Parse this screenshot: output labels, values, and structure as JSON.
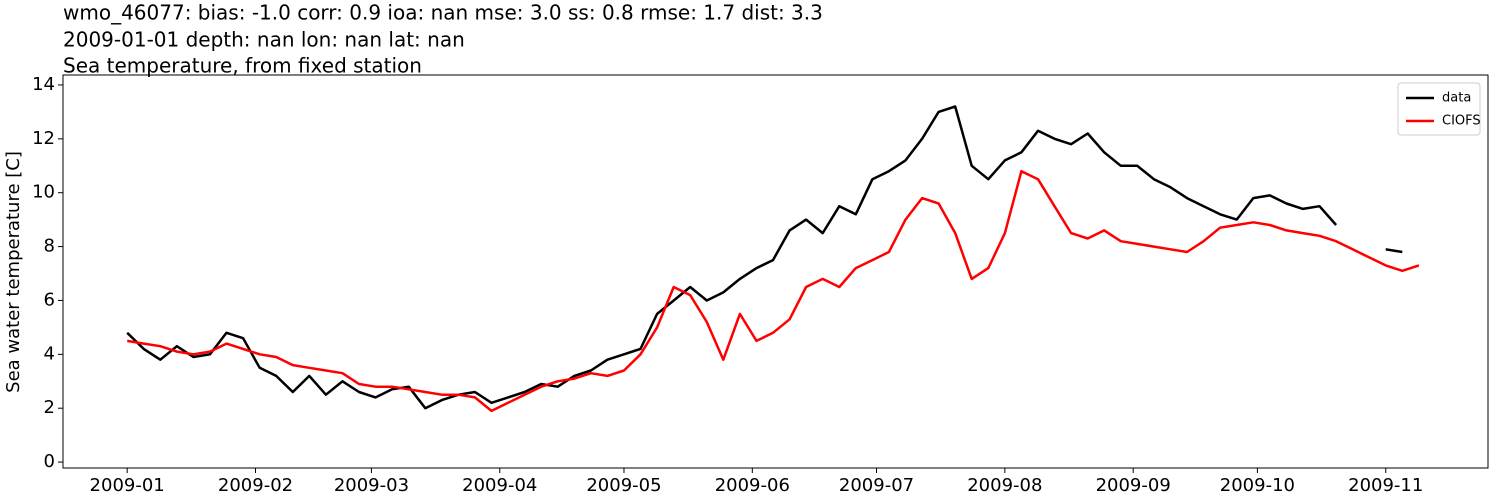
{
  "chart_data": {
    "type": "line",
    "title_lines": [
      "wmo_46077: bias: -1.0  corr: 0.9  ioa: nan  mse: 3.0  ss: 0.8  rmse: 1.7  dist: 3.3",
      "2009-01-01 depth: nan lon: nan lat: nan",
      "Sea temperature, from fixed station"
    ],
    "ylabel": "Sea water temperature [C]",
    "x": [
      0,
      4,
      8,
      12,
      16,
      20,
      24,
      28,
      32,
      36,
      40,
      44,
      48,
      52,
      56,
      60,
      64,
      68,
      72,
      76,
      80,
      84,
      88,
      92,
      96,
      100,
      104,
      108,
      112,
      116,
      120,
      124,
      128,
      132,
      136,
      140,
      144,
      148,
      152,
      156,
      160,
      164,
      168,
      172,
      176,
      180,
      184,
      188,
      192,
      196,
      200,
      204,
      208,
      212,
      216,
      220,
      224,
      228,
      232,
      236,
      240,
      244,
      248,
      252,
      256,
      260,
      264,
      268,
      272,
      276,
      280,
      284,
      288,
      292,
      296,
      300,
      304,
      308,
      312
    ],
    "series": [
      {
        "name": "data",
        "color": "#000000",
        "values": [
          4.8,
          4.2,
          3.8,
          4.3,
          3.9,
          4.0,
          4.8,
          4.6,
          3.5,
          3.2,
          2.6,
          3.2,
          2.5,
          3.0,
          2.6,
          2.4,
          2.7,
          2.8,
          2.0,
          2.3,
          2.5,
          2.6,
          2.2,
          2.4,
          2.6,
          2.9,
          2.8,
          3.2,
          3.4,
          3.8,
          4.0,
          4.2,
          5.5,
          6.0,
          6.5,
          6.0,
          6.3,
          6.8,
          7.2,
          7.5,
          8.6,
          9.0,
          8.5,
          9.5,
          9.2,
          10.5,
          10.8,
          11.2,
          12.0,
          13.0,
          13.2,
          11.0,
          10.5,
          11.2,
          11.5,
          12.3,
          12.0,
          11.8,
          12.2,
          11.5,
          11.0,
          11.0,
          10.5,
          10.2,
          9.8,
          9.5,
          9.2,
          9.0,
          9.8,
          9.9,
          9.6,
          9.4,
          9.5,
          8.8,
          null,
          null,
          7.9,
          7.8,
          null
        ]
      },
      {
        "name": "CIOFS",
        "color": "#ff0000",
        "values": [
          4.5,
          4.4,
          4.3,
          4.1,
          4.0,
          4.1,
          4.4,
          4.2,
          4.0,
          3.9,
          3.6,
          3.5,
          3.4,
          3.3,
          2.9,
          2.8,
          2.8,
          2.7,
          2.6,
          2.5,
          2.5,
          2.4,
          1.9,
          2.2,
          2.5,
          2.8,
          3.0,
          3.1,
          3.3,
          3.2,
          3.4,
          4.0,
          5.0,
          6.5,
          6.2,
          5.2,
          3.8,
          5.5,
          4.5,
          4.8,
          5.3,
          6.5,
          6.8,
          6.5,
          7.2,
          7.5,
          7.8,
          9.0,
          9.8,
          9.6,
          8.5,
          6.8,
          7.2,
          8.5,
          10.8,
          10.5,
          9.5,
          8.5,
          8.3,
          8.6,
          8.2,
          8.1,
          8.0,
          7.9,
          7.8,
          8.2,
          8.7,
          8.8,
          8.9,
          8.8,
          8.6,
          8.5,
          8.4,
          8.2,
          7.9,
          7.6,
          7.3,
          7.1,
          7.3
        ]
      }
    ],
    "xlim": [
      -15.5,
      328.7
    ],
    "xticks": [
      {
        "value": 0,
        "label": "2009-01"
      },
      {
        "value": 31,
        "label": "2009-02"
      },
      {
        "value": 59,
        "label": "2009-03"
      },
      {
        "value": 90,
        "label": "2009-04"
      },
      {
        "value": 120,
        "label": "2009-05"
      },
      {
        "value": 151,
        "label": "2009-06"
      },
      {
        "value": 181,
        "label": "2009-07"
      },
      {
        "value": 212,
        "label": "2009-08"
      },
      {
        "value": 243,
        "label": "2009-09"
      },
      {
        "value": 273,
        "label": "2009-10"
      },
      {
        "value": 304,
        "label": "2009-11"
      }
    ],
    "ylim": [
      -0.22,
      14.37
    ],
    "yticks": [
      0,
      2,
      4,
      6,
      8,
      10,
      12,
      14
    ],
    "legend": "upper right"
  }
}
